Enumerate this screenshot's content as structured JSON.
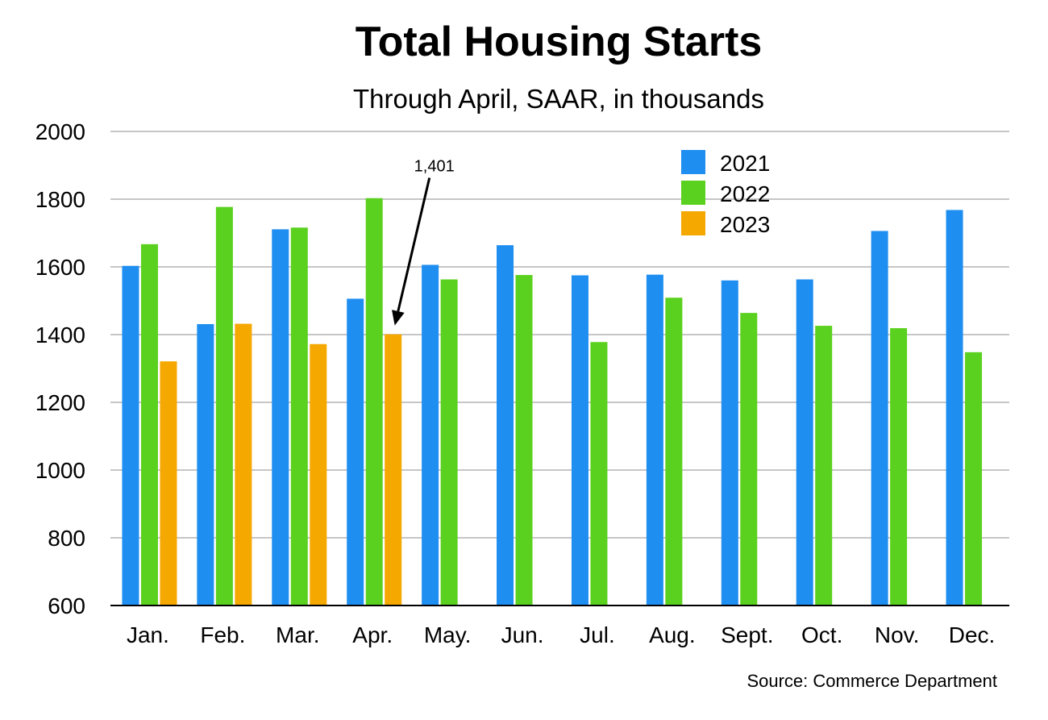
{
  "chart_data": {
    "type": "bar",
    "title": "Total Housing Starts",
    "subtitle": "Through April, SAAR, in thousands",
    "categories": [
      "Jan.",
      "Feb.",
      "Mar.",
      "Apr.",
      "May.",
      "Jun.",
      "Jul.",
      "Aug.",
      "Sept.",
      "Oct.",
      "Nov.",
      "Dec."
    ],
    "series": [
      {
        "name": "2021",
        "color": "#1f8ef1",
        "values": [
          1603,
          1431,
          1711,
          1506,
          1606,
          1664,
          1575,
          1577,
          1560,
          1563,
          1706,
          1768
        ]
      },
      {
        "name": "2022",
        "color": "#5bd11f",
        "values": [
          1667,
          1777,
          1716,
          1803,
          1563,
          1576,
          1378,
          1509,
          1464,
          1426,
          1419,
          1348
        ]
      },
      {
        "name": "2023",
        "color": "#f5a800",
        "values": [
          1321,
          1432,
          1372,
          1401,
          null,
          null,
          null,
          null,
          null,
          null,
          null,
          null
        ]
      }
    ],
    "ylim": [
      600,
      2000
    ],
    "yticks": [
      600,
      800,
      1000,
      1200,
      1400,
      1600,
      1800,
      2000
    ],
    "xlabel": "",
    "ylabel": "",
    "grid": true,
    "legend_position": "top-right",
    "annotation": {
      "text": "1,401",
      "category": "Apr.",
      "series": "2023",
      "value": 1401
    },
    "source": "Source: Commerce Department"
  }
}
